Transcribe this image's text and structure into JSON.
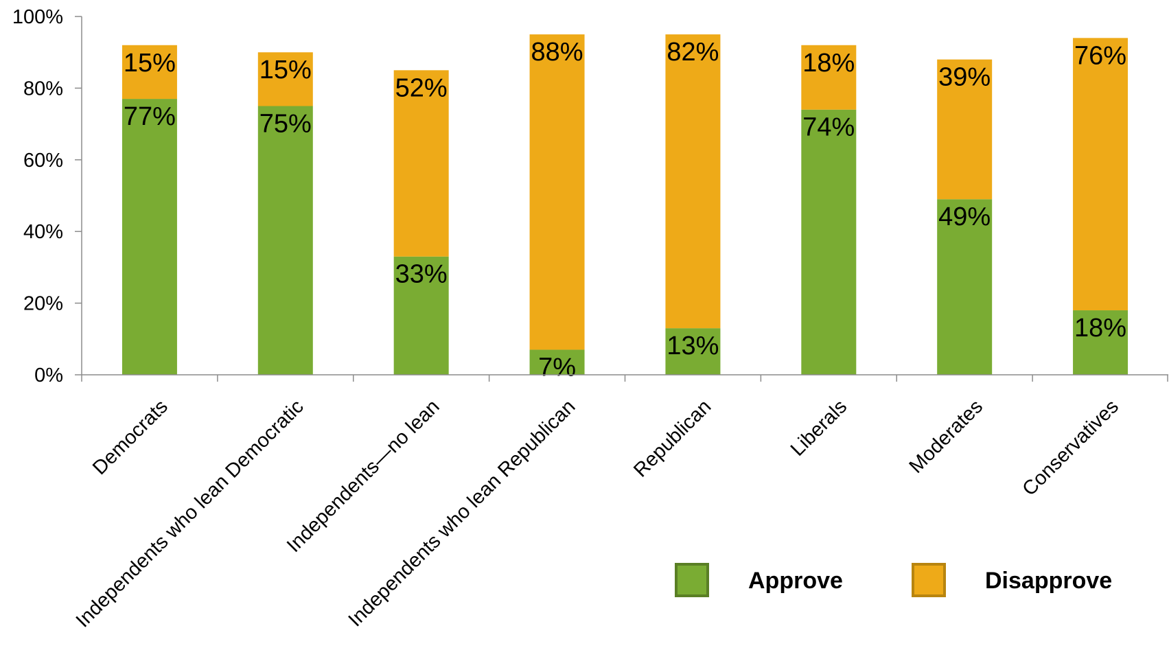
{
  "chart_data": {
    "type": "bar",
    "stacked": true,
    "title": "",
    "xlabel": "",
    "ylabel": "",
    "ylim": [
      0,
      100
    ],
    "y_unit": "%",
    "yticks": [
      "0%",
      "20%",
      "40%",
      "60%",
      "80%",
      "100%"
    ],
    "categories": [
      "Democrats",
      "Independents who lean Democratic",
      "Independents—no lean",
      "Independents who lean Republican",
      "Republican",
      "Liberals",
      "Moderates",
      "Conservatives"
    ],
    "series": [
      {
        "name": "Approve",
        "color": "#7aac33",
        "border_color": "#5a7f25",
        "values": [
          77,
          75,
          33,
          7,
          13,
          74,
          49,
          18
        ],
        "labels": [
          "77%",
          "75%",
          "33%",
          "7%",
          "13%",
          "74%",
          "49%",
          "18%"
        ]
      },
      {
        "name": "Disapprove",
        "color": "#eeaa18",
        "border_color": "#b8850f",
        "values": [
          15,
          15,
          52,
          88,
          82,
          18,
          39,
          76
        ],
        "labels": [
          "15%",
          "15%",
          "52%",
          "88%",
          "82%",
          "18%",
          "39%",
          "76%"
        ]
      }
    ],
    "grid": false,
    "legend_position": "bottom-right"
  }
}
